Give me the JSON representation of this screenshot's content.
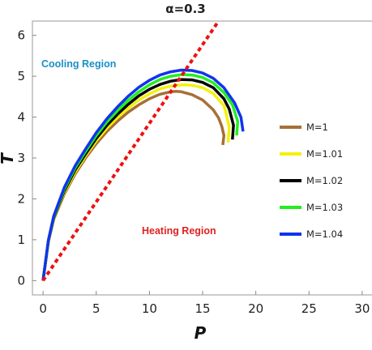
{
  "chart_data": {
    "type": "line",
    "title": "α=0.3",
    "xlabel": "P",
    "ylabel": "T",
    "xlim": [
      -1,
      31
    ],
    "ylim": [
      -0.35,
      6.35
    ],
    "xticks": [
      0,
      5,
      10,
      15,
      20,
      25,
      30
    ],
    "yticks": [
      0,
      1,
      2,
      3,
      4,
      5,
      6
    ],
    "legend_position": "right",
    "inversion_line": {
      "style": "dashed",
      "color": "#ee1111",
      "x": [
        0,
        16.5
      ],
      "y": [
        0,
        6.35
      ]
    },
    "series": [
      {
        "name": "M=1",
        "color": "#a67037",
        "x": [
          0,
          0.5,
          1,
          2,
          3,
          4,
          5,
          6,
          7,
          8,
          9,
          10,
          11,
          12,
          12.5,
          13,
          14,
          15,
          16,
          16.5,
          16.8,
          17.0,
          16.9
        ],
        "y": [
          0,
          0.95,
          1.5,
          2.12,
          2.6,
          3.0,
          3.35,
          3.65,
          3.9,
          4.12,
          4.3,
          4.45,
          4.56,
          4.62,
          4.63,
          4.62,
          4.55,
          4.42,
          4.18,
          3.98,
          3.78,
          3.55,
          3.32
        ]
      },
      {
        "name": "M=1.01",
        "color": "#f2f20a",
        "x": [
          0,
          0.5,
          1,
          2,
          3,
          4,
          5,
          6,
          7,
          8,
          9,
          10,
          11,
          12,
          13,
          13.5,
          14,
          15,
          16,
          17,
          17.2,
          17.5,
          17.4
        ],
        "y": [
          0,
          0.96,
          1.52,
          2.16,
          2.65,
          3.05,
          3.42,
          3.73,
          3.99,
          4.22,
          4.42,
          4.57,
          4.69,
          4.76,
          4.79,
          4.79,
          4.78,
          4.72,
          4.58,
          4.28,
          4.1,
          3.75,
          3.38
        ]
      },
      {
        "name": "M=1.02",
        "color": "#000000",
        "x": [
          0,
          0.5,
          1,
          2,
          3,
          4,
          5,
          6,
          7,
          8,
          9,
          10,
          11,
          12,
          13,
          14,
          15,
          16,
          17,
          17.5,
          17.9,
          17.8
        ],
        "y": [
          0,
          0.97,
          1.54,
          2.2,
          2.7,
          3.1,
          3.48,
          3.8,
          4.07,
          4.31,
          4.52,
          4.68,
          4.8,
          4.88,
          4.92,
          4.91,
          4.85,
          4.72,
          4.45,
          4.2,
          3.8,
          3.45
        ]
      },
      {
        "name": "M=1.03",
        "color": "#22ee22",
        "x": [
          0,
          0.5,
          1,
          2,
          3,
          4,
          5,
          6,
          7,
          8,
          9,
          10,
          11,
          12,
          13,
          14,
          15,
          16,
          17,
          17.8,
          18.3,
          18.2
        ],
        "y": [
          0,
          0.98,
          1.56,
          2.24,
          2.75,
          3.16,
          3.55,
          3.88,
          4.16,
          4.41,
          4.62,
          4.79,
          4.92,
          5.0,
          5.04,
          5.03,
          4.97,
          4.84,
          4.6,
          4.3,
          3.9,
          3.55
        ]
      },
      {
        "name": "M=1.04",
        "color": "#1133ee",
        "x": [
          0,
          0.5,
          1,
          2,
          3,
          4,
          5,
          6,
          7,
          8,
          9,
          10,
          11,
          12,
          13,
          14,
          15,
          16,
          17,
          18,
          18.6,
          18.8
        ],
        "y": [
          0,
          0.99,
          1.58,
          2.28,
          2.8,
          3.22,
          3.62,
          3.96,
          4.25,
          4.51,
          4.73,
          4.9,
          5.03,
          5.11,
          5.15,
          5.14,
          5.08,
          4.95,
          4.72,
          4.35,
          4.0,
          3.65
        ]
      }
    ],
    "annotations": [
      {
        "text": "Cooling Region",
        "color": "#1a8fc7"
      },
      {
        "text": "Heating Region",
        "color": "#e02222"
      }
    ]
  }
}
